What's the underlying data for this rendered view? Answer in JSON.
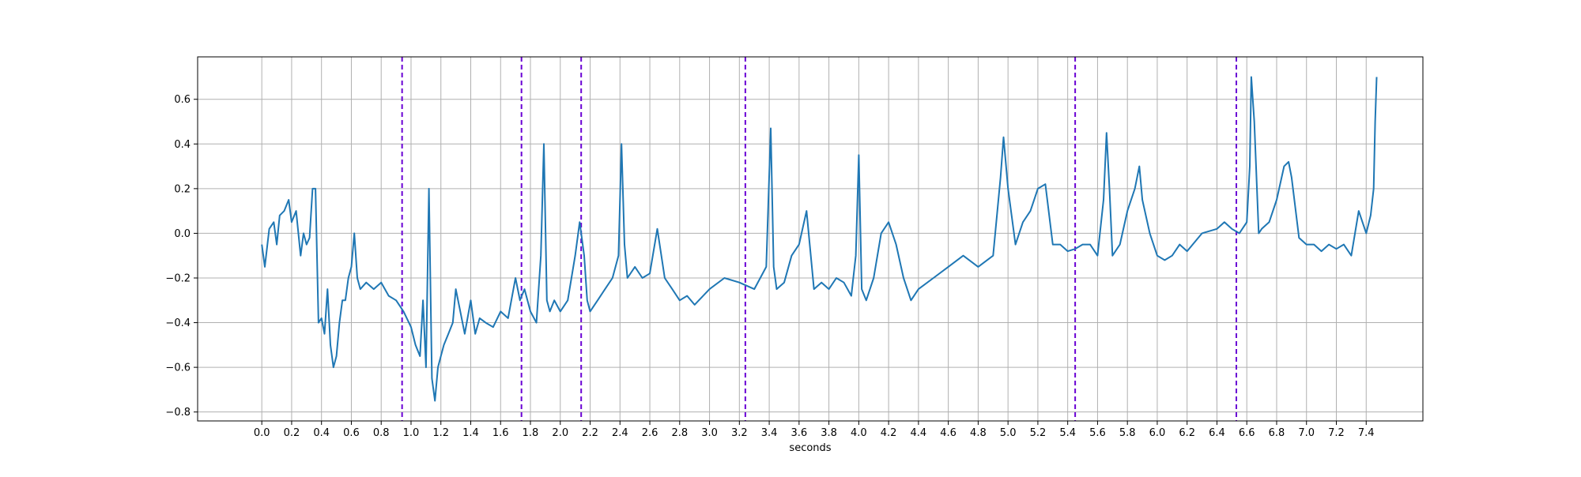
{
  "chart_data": {
    "type": "line",
    "title": "",
    "xlabel": "seconds",
    "ylabel": "",
    "xlim": [
      -0.43,
      7.78
    ],
    "ylim": [
      -0.84,
      0.79
    ],
    "x_ticks": [
      0.0,
      0.2,
      0.4,
      0.6,
      0.8,
      1.0,
      1.2,
      1.4,
      1.6,
      1.8,
      2.0,
      2.2,
      2.4,
      2.6,
      2.8,
      3.0,
      3.2,
      3.4,
      3.6,
      3.8,
      4.0,
      4.2,
      4.4,
      4.6,
      4.8,
      5.0,
      5.2,
      5.4,
      5.6,
      5.8,
      6.0,
      6.2,
      6.4,
      6.6,
      6.8,
      7.0,
      7.2,
      7.4
    ],
    "x_tick_labels": [
      "0.0",
      "0.2",
      "0.4",
      "0.6",
      "0.8",
      "1.0",
      "1.2",
      "1.4",
      "1.6",
      "1.8",
      "2.0",
      "2.2",
      "2.4",
      "2.6",
      "2.8",
      "3.0",
      "3.2",
      "3.4",
      "3.6",
      "3.8",
      "4.0",
      "4.2",
      "4.4",
      "4.6",
      "4.8",
      "5.0",
      "5.2",
      "5.4",
      "5.6",
      "5.8",
      "6.0",
      "6.2",
      "6.4",
      "6.6",
      "6.8",
      "7.0",
      "7.2",
      "7.4"
    ],
    "y_ticks": [
      -0.8,
      -0.6,
      -0.4,
      -0.2,
      0.0,
      0.2,
      0.4,
      0.6
    ],
    "y_tick_labels": [
      "−0.8",
      "−0.6",
      "−0.4",
      "−0.2",
      "0.0",
      "0.2",
      "0.4",
      "0.6"
    ],
    "grid": true,
    "vertical_markers": {
      "x": [
        0.94,
        1.74,
        2.14,
        3.24,
        5.45,
        6.53
      ],
      "color": "#6a00d4",
      "style": "dashed"
    },
    "series": [
      {
        "color": "#1f77b4",
        "x": [
          0.0,
          0.02,
          0.05,
          0.08,
          0.1,
          0.12,
          0.15,
          0.18,
          0.2,
          0.23,
          0.26,
          0.28,
          0.3,
          0.32,
          0.34,
          0.36,
          0.38,
          0.4,
          0.42,
          0.44,
          0.46,
          0.48,
          0.5,
          0.52,
          0.54,
          0.56,
          0.58,
          0.6,
          0.62,
          0.64,
          0.66,
          0.7,
          0.75,
          0.8,
          0.85,
          0.9,
          0.95,
          1.0,
          1.03,
          1.06,
          1.08,
          1.1,
          1.12,
          1.14,
          1.16,
          1.18,
          1.2,
          1.22,
          1.25,
          1.28,
          1.3,
          1.33,
          1.36,
          1.4,
          1.43,
          1.46,
          1.5,
          1.55,
          1.6,
          1.65,
          1.7,
          1.73,
          1.76,
          1.8,
          1.84,
          1.87,
          1.89,
          1.91,
          1.93,
          1.96,
          2.0,
          2.05,
          2.1,
          2.13,
          2.16,
          2.18,
          2.2,
          2.25,
          2.3,
          2.35,
          2.39,
          2.41,
          2.43,
          2.45,
          2.5,
          2.55,
          2.6,
          2.65,
          2.7,
          2.75,
          2.8,
          2.85,
          2.9,
          3.0,
          3.1,
          3.2,
          3.3,
          3.38,
          3.41,
          3.43,
          3.45,
          3.5,
          3.55,
          3.6,
          3.65,
          3.7,
          3.75,
          3.8,
          3.85,
          3.9,
          3.95,
          3.98,
          4.0,
          4.02,
          4.05,
          4.1,
          4.15,
          4.2,
          4.25,
          4.3,
          4.35,
          4.4,
          4.5,
          4.6,
          4.7,
          4.8,
          4.9,
          4.95,
          4.97,
          5.0,
          5.05,
          5.1,
          5.15,
          5.2,
          5.25,
          5.3,
          5.35,
          5.4,
          5.45,
          5.5,
          5.55,
          5.6,
          5.64,
          5.66,
          5.68,
          5.7,
          5.75,
          5.8,
          5.85,
          5.88,
          5.9,
          5.95,
          6.0,
          6.05,
          6.1,
          6.15,
          6.2,
          6.3,
          6.4,
          6.45,
          6.5,
          6.55,
          6.6,
          6.62,
          6.63,
          6.65,
          6.68,
          6.7,
          6.75,
          6.8,
          6.85,
          6.88,
          6.9,
          6.95,
          7.0,
          7.05,
          7.1,
          7.15,
          7.2,
          7.25,
          7.3,
          7.35,
          7.4,
          7.43,
          7.45,
          7.46,
          7.47
        ],
        "values": [
          -0.05,
          -0.15,
          0.02,
          0.05,
          -0.05,
          0.08,
          0.1,
          0.15,
          0.05,
          0.1,
          -0.1,
          0.0,
          -0.05,
          -0.02,
          0.2,
          0.2,
          -0.4,
          -0.38,
          -0.45,
          -0.25,
          -0.5,
          -0.6,
          -0.55,
          -0.4,
          -0.3,
          -0.3,
          -0.2,
          -0.15,
          0.0,
          -0.2,
          -0.25,
          -0.22,
          -0.25,
          -0.22,
          -0.28,
          -0.3,
          -0.35,
          -0.42,
          -0.5,
          -0.55,
          -0.3,
          -0.6,
          0.2,
          -0.65,
          -0.75,
          -0.6,
          -0.55,
          -0.5,
          -0.45,
          -0.4,
          -0.25,
          -0.35,
          -0.45,
          -0.3,
          -0.45,
          -0.38,
          -0.4,
          -0.42,
          -0.35,
          -0.38,
          -0.2,
          -0.3,
          -0.25,
          -0.35,
          -0.4,
          -0.1,
          0.4,
          -0.3,
          -0.35,
          -0.3,
          -0.35,
          -0.3,
          -0.1,
          0.05,
          -0.1,
          -0.3,
          -0.35,
          -0.3,
          -0.25,
          -0.2,
          -0.1,
          0.4,
          -0.05,
          -0.2,
          -0.15,
          -0.2,
          -0.18,
          0.02,
          -0.2,
          -0.25,
          -0.3,
          -0.28,
          -0.32,
          -0.25,
          -0.2,
          -0.22,
          -0.25,
          -0.15,
          0.47,
          -0.15,
          -0.25,
          -0.22,
          -0.1,
          -0.05,
          0.1,
          -0.25,
          -0.22,
          -0.25,
          -0.2,
          -0.22,
          -0.28,
          -0.1,
          0.35,
          -0.25,
          -0.3,
          -0.2,
          0.0,
          0.05,
          -0.05,
          -0.2,
          -0.3,
          -0.25,
          -0.2,
          -0.15,
          -0.1,
          -0.15,
          -0.1,
          0.25,
          0.43,
          0.2,
          -0.05,
          0.05,
          0.1,
          0.2,
          0.22,
          -0.05,
          -0.05,
          -0.08,
          -0.07,
          -0.05,
          -0.05,
          -0.1,
          0.15,
          0.45,
          0.2,
          -0.1,
          -0.05,
          0.1,
          0.2,
          0.3,
          0.15,
          0.0,
          -0.1,
          -0.12,
          -0.1,
          -0.05,
          -0.08,
          0.0,
          0.02,
          0.05,
          0.02,
          0.0,
          0.05,
          0.3,
          0.7,
          0.5,
          0.0,
          0.02,
          0.05,
          0.15,
          0.3,
          0.32,
          0.25,
          -0.02,
          -0.05,
          -0.05,
          -0.08,
          -0.05,
          -0.07,
          -0.05,
          -0.1,
          0.1,
          0.0,
          0.08,
          0.2,
          0.5,
          0.7
        ]
      }
    ]
  }
}
